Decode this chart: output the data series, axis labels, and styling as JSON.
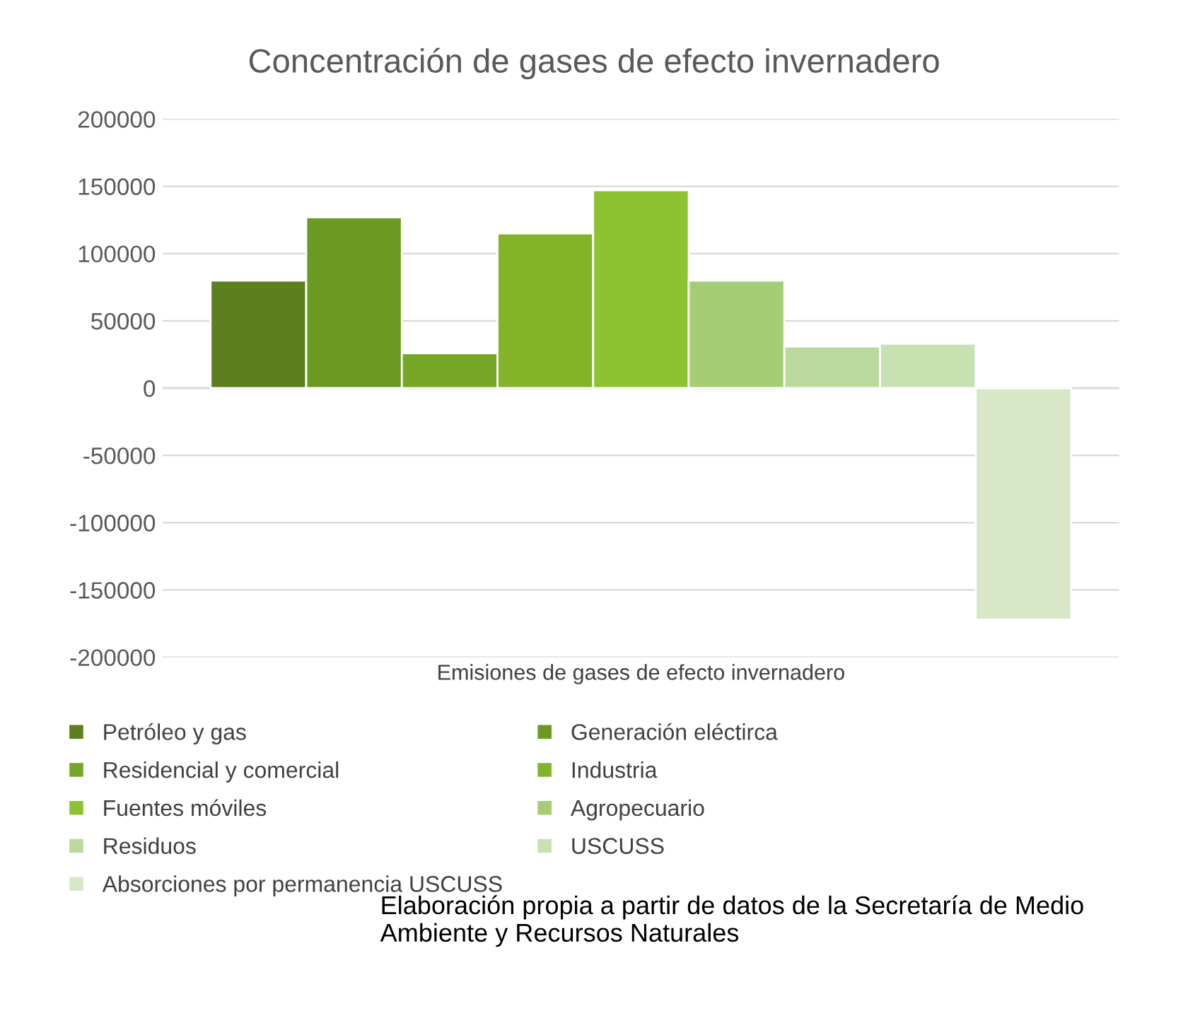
{
  "chart_data": {
    "type": "bar",
    "title": "Concentración de gases de efecto invernadero",
    "categories": [
      "Emisiones de gases de efecto invernadero"
    ],
    "series": [
      {
        "name": "Petróleo y gas",
        "color": "#5b801d",
        "values": [
          80000
        ]
      },
      {
        "name": "Generación eléctirca",
        "color": "#6a9a22",
        "values": [
          127000
        ]
      },
      {
        "name": "Residencial y comercial",
        "color": "#76a626",
        "values": [
          26000
        ]
      },
      {
        "name": "Industria",
        "color": "#82b42a",
        "values": [
          115000
        ]
      },
      {
        "name": "Fuentes móviles",
        "color": "#8dc330",
        "values": [
          147000
        ]
      },
      {
        "name": "Agropecuario",
        "color": "#a5cd74",
        "values": [
          80000
        ]
      },
      {
        "name": "Residuos",
        "color": "#bad99c",
        "values": [
          31000
        ]
      },
      {
        "name": "USCUSS",
        "color": "#c8e1b0",
        "values": [
          33000
        ]
      },
      {
        "name": "Absorciones por permanencia USCUSS",
        "color": "#d8e7c6",
        "values": [
          -172000
        ]
      }
    ],
    "ylim": [
      -200000,
      200000
    ],
    "yticks": [
      -200000,
      -150000,
      -100000,
      -50000,
      0,
      50000,
      100000,
      150000,
      200000
    ],
    "grid": "y",
    "legend": "bottom",
    "annotations": [
      "Elaboración propia a partir de datos de la Secretaría de Medio Ambiente y Recursos Naturales"
    ]
  }
}
